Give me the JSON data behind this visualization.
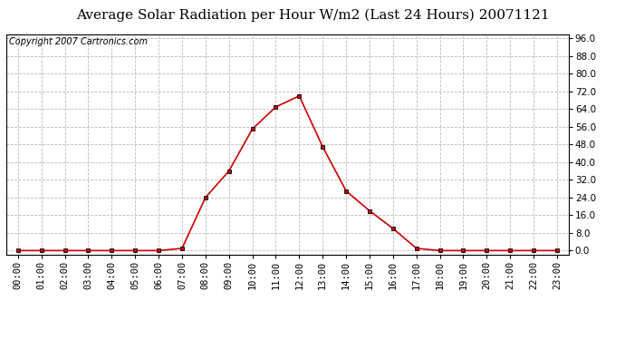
{
  "title": "Average Solar Radiation per Hour W/m2 (Last 24 Hours) 20071121",
  "copyright": "Copyright 2007 Cartronics.com",
  "hours": [
    "00:00",
    "01:00",
    "02:00",
    "03:00",
    "04:00",
    "05:00",
    "06:00",
    "07:00",
    "08:00",
    "09:00",
    "10:00",
    "11:00",
    "12:00",
    "13:00",
    "14:00",
    "15:00",
    "16:00",
    "17:00",
    "18:00",
    "19:00",
    "20:00",
    "21:00",
    "22:00",
    "23:00"
  ],
  "values": [
    0.0,
    0.0,
    0.0,
    0.0,
    0.0,
    0.0,
    0.0,
    1.0,
    24.0,
    36.0,
    55.0,
    65.0,
    70.0,
    47.0,
    27.0,
    18.0,
    10.0,
    1.0,
    0.0,
    0.0,
    0.0,
    0.0,
    0.0,
    0.0
  ],
  "line_color": "#cc0000",
  "marker_color": "#000000",
  "bg_color": "#ffffff",
  "plot_bg_color": "#ffffff",
  "grid_color": "#bbbbbb",
  "ylim_min": -2.0,
  "ylim_max": 98.0,
  "yticks": [
    0.0,
    8.0,
    16.0,
    24.0,
    32.0,
    40.0,
    48.0,
    56.0,
    64.0,
    72.0,
    80.0,
    88.0,
    96.0
  ],
  "title_fontsize": 11,
  "copyright_fontsize": 7,
  "tick_fontsize": 7.5
}
